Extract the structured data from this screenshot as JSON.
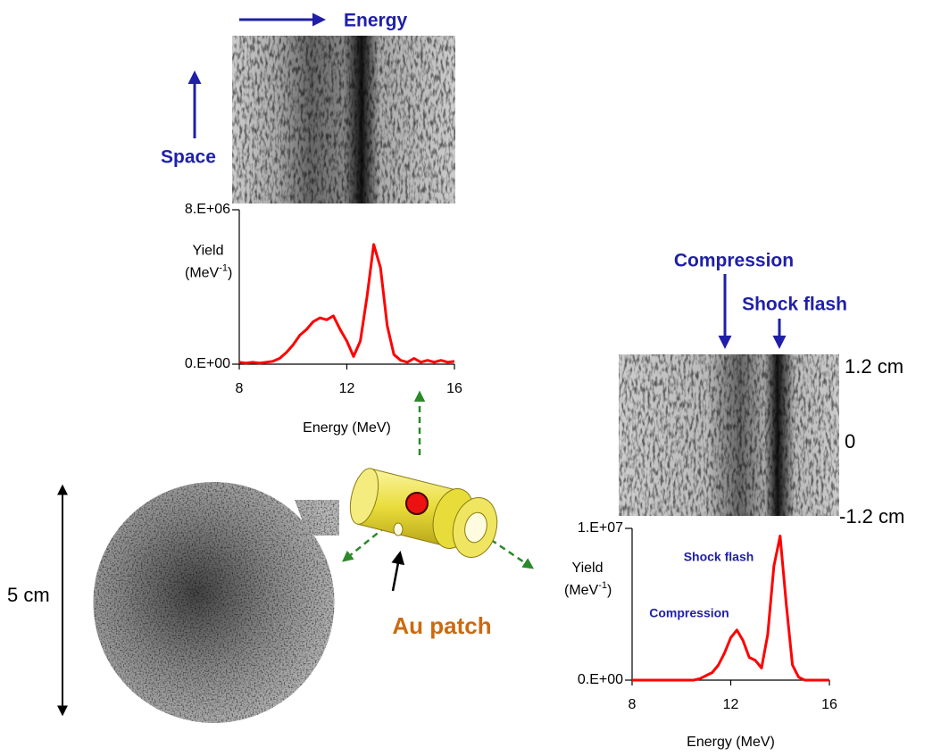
{
  "chart_data": [
    {
      "type": "line",
      "color": "#ff0000",
      "x": [
        8,
        8.25,
        8.5,
        8.75,
        9,
        9.25,
        9.5,
        9.75,
        10,
        10.25,
        10.5,
        10.75,
        11,
        11.25,
        11.5,
        11.75,
        12,
        12.25,
        12.5,
        12.75,
        13,
        13.25,
        13.5,
        13.75,
        14,
        14.25,
        14.5,
        14.75,
        15,
        15.25,
        15.5,
        15.75,
        16
      ],
      "values": [
        100000,
        50000,
        100000,
        50000,
        100000,
        150000,
        300000,
        600000,
        1000000,
        1500000,
        1800000,
        2200000,
        2400000,
        2300000,
        2500000,
        1800000,
        1200000,
        400000,
        1200000,
        3500000,
        6200000,
        5000000,
        2000000,
        500000,
        200000,
        100000,
        300000,
        100000,
        200000,
        100000,
        200000,
        100000,
        150000
      ],
      "xlim": [
        8,
        16
      ],
      "xticks": [
        8,
        12,
        16
      ],
      "ylim": [
        0,
        8000000
      ],
      "yticks": [
        {
          "value": 0,
          "label": "0.E+00"
        },
        {
          "value": 8000000,
          "label": "8.E+06"
        }
      ],
      "xlabel": "Energy (MeV)",
      "ylabel": {
        "name": "Yield",
        "unit": "(MeV",
        "exponent": "-1",
        "close": ")"
      },
      "image_labels": {
        "horizontal": "Energy",
        "vertical": "Space"
      }
    },
    {
      "type": "line",
      "color": "#ff0000",
      "x": [
        8,
        8.25,
        8.5,
        8.75,
        9,
        9.25,
        9.5,
        9.75,
        10,
        10.25,
        10.5,
        10.75,
        11,
        11.25,
        11.5,
        11.75,
        12,
        12.25,
        12.5,
        12.75,
        13,
        13.25,
        13.5,
        13.75,
        14,
        14.25,
        14.5,
        14.75,
        15,
        15.25,
        15.5,
        15.75,
        16
      ],
      "values": [
        0,
        0,
        0,
        0,
        0,
        0,
        0,
        0,
        0,
        0,
        0,
        100000,
        300000,
        500000,
        1000000,
        1800000,
        2800000,
        3300000,
        2600000,
        1500000,
        1300000,
        800000,
        3000000,
        7500000,
        9500000,
        5000000,
        1000000,
        200000,
        0,
        0,
        0,
        0,
        0
      ],
      "xlim": [
        8,
        16
      ],
      "xticks": [
        8,
        12,
        16
      ],
      "ylim": [
        0,
        10000000
      ],
      "yticks": [
        {
          "value": 0,
          "label": "0.E+00"
        },
        {
          "value": 10000000,
          "label": "1.E+07"
        }
      ],
      "xlabel": "Energy (MeV)",
      "ylabel": {
        "name": "Yield",
        "unit": "(MeV",
        "exponent": "-1",
        "close": ")"
      },
      "annotations": [
        "Shock flash",
        "Compression"
      ],
      "image_labels": {
        "compression": "Compression",
        "shock": "Shock flash"
      },
      "scale_labels": [
        "1.2 cm",
        "0",
        "-1.2 cm"
      ]
    }
  ],
  "figure": {
    "scale": "5 cm",
    "target": "Au patch"
  }
}
